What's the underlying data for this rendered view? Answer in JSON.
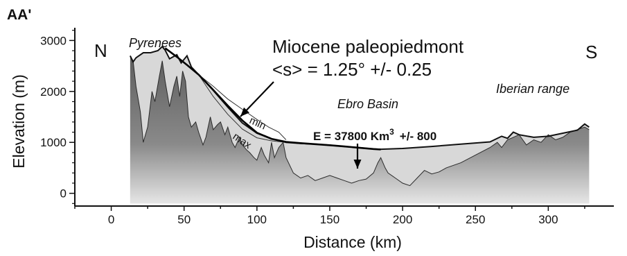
{
  "chart_data": {
    "type": "area",
    "panel_title": "AA'",
    "xlabel": "Distance (km)",
    "ylabel": "Elevation (m)",
    "xlim": [
      -25,
      345
    ],
    "ylim": [
      -250,
      3250
    ],
    "x_ticks": [
      0,
      50,
      100,
      150,
      200,
      250,
      300
    ],
    "y_ticks": [
      0,
      1000,
      2000,
      3000
    ],
    "grid": false,
    "colors": {
      "fill_dark": "#6e6e6e",
      "fill_light": "#d8d8d8",
      "line": "#111111"
    },
    "series": [
      {
        "role": "topographic envelope (max)",
        "x": [
          13,
          15,
          17,
          22,
          27,
          32,
          35,
          37,
          40,
          45,
          48,
          52,
          55,
          60,
          70,
          80,
          90,
          100,
          110,
          120,
          130,
          140,
          150,
          160,
          170,
          180,
          185,
          200,
          220,
          240,
          260,
          268,
          272,
          276,
          280,
          290,
          300,
          310,
          320,
          325,
          328
        ],
        "y": [
          2700,
          2580,
          2660,
          2760,
          2760,
          2800,
          2880,
          2810,
          2640,
          2720,
          2560,
          2700,
          2480,
          2330,
          2020,
          1690,
          1380,
          1180,
          1070,
          1000,
          980,
          965,
          945,
          920,
          895,
          870,
          865,
          880,
          920,
          965,
          1010,
          1120,
          1080,
          1200,
          1150,
          1100,
          1120,
          1180,
          1240,
          1360,
          1300
        ]
      },
      {
        "role": "topographic section",
        "x": [
          13,
          15,
          17,
          20,
          22,
          25,
          28,
          30,
          33,
          35,
          37,
          40,
          43,
          45,
          47,
          49,
          51,
          53,
          55,
          58,
          60,
          63,
          65,
          68,
          70,
          73,
          75,
          78,
          80,
          83,
          85,
          88,
          90,
          93,
          95,
          98,
          100,
          103,
          105,
          108,
          110,
          112,
          115,
          118,
          120,
          125,
          130,
          135,
          140,
          145,
          150,
          155,
          160,
          165,
          170,
          175,
          180,
          183,
          185,
          188,
          190,
          195,
          200,
          205,
          210,
          215,
          220,
          225,
          230,
          240,
          250,
          260,
          265,
          268,
          272,
          276,
          280,
          285,
          290,
          295,
          300,
          305,
          310,
          315,
          320,
          325,
          328
        ],
        "y": [
          2700,
          2600,
          2100,
          1600,
          1000,
          1300,
          2000,
          1800,
          2300,
          2600,
          2200,
          1700,
          2100,
          2300,
          1900,
          2400,
          2200,
          1500,
          1300,
          1400,
          1200,
          950,
          1100,
          1500,
          1250,
          1350,
          1400,
          1150,
          1300,
          1000,
          900,
          1100,
          950,
          850,
          800,
          700,
          650,
          900,
          750,
          600,
          1000,
          700,
          900,
          1000,
          700,
          400,
          300,
          350,
          250,
          300,
          350,
          300,
          250,
          200,
          250,
          280,
          400,
          600,
          700,
          500,
          400,
          300,
          200,
          150,
          300,
          450,
          380,
          420,
          500,
          600,
          750,
          900,
          1000,
          900,
          1050,
          1100,
          1150,
          950,
          1050,
          1000,
          1150,
          1050,
          1100,
          1200,
          1250,
          1300,
          1250
        ]
      },
      {
        "role": "paleopiedmont surface",
        "x": [
          37,
          45,
          52,
          60,
          70,
          80,
          90,
          100,
          110,
          120,
          130,
          140,
          150,
          160,
          170,
          180,
          185
        ],
        "y": [
          2850,
          2680,
          2520,
          2330,
          2030,
          1720,
          1430,
          1190,
          1070,
          1010,
          985,
          965,
          945,
          920,
          895,
          870,
          860
        ]
      },
      {
        "role": "paleopiedmont min",
        "x": [
          60,
          70,
          80,
          90,
          100,
          108,
          115,
          120
        ],
        "y": [
          2330,
          2100,
          1850,
          1650,
          1450,
          1300,
          1200,
          1050
        ]
      },
      {
        "role": "paleopiedmont max",
        "x": [
          60,
          70,
          80,
          90,
          100,
          110,
          120
        ],
        "y": [
          2330,
          1900,
          1550,
          1260,
          1090,
          1030,
          1000
        ]
      }
    ],
    "annotations": {
      "north": "N",
      "south": "S",
      "pyrenees": "Pyrenees",
      "ebro": "Ebro Basin",
      "iberian": "Iberian range",
      "miocene": "Miocene paleopiedmont",
      "slope": "<s> = 1.25° +/- 0.25",
      "volume": "E = 37800 Km",
      "volume_exp": "3",
      "volume_err": "+/- 800",
      "min": "min",
      "max": "max"
    }
  }
}
